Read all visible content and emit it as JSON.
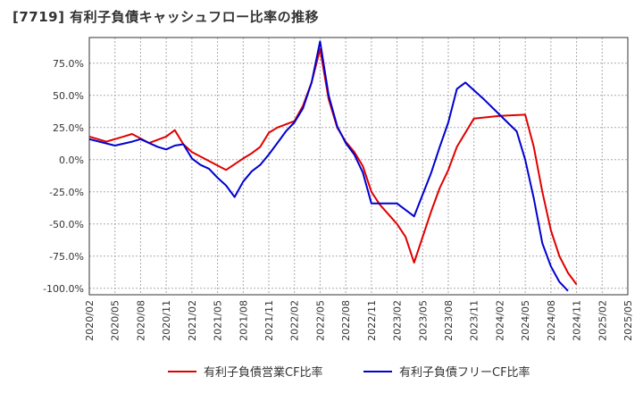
{
  "title": "[7719]  有利子負債キャッシュフロー比率の推移",
  "chart_data": {
    "type": "line",
    "title": "[7719]  有利子負債キャッシュフロー比率の推移",
    "xlabel": "",
    "ylabel": "",
    "ylim": [
      -105,
      95
    ],
    "yticks": [
      75,
      50,
      25,
      0,
      -25,
      -50,
      -75,
      -100
    ],
    "ytick_labels": [
      "75.0%",
      "50.0%",
      "25.0%",
      "0.0%",
      "-25.0%",
      "-50.0%",
      "-75.0%",
      "-100.0%"
    ],
    "xticks": [
      "2020/02",
      "2020/05",
      "2020/08",
      "2020/11",
      "2021/02",
      "2021/05",
      "2021/08",
      "2021/11",
      "2022/02",
      "2022/05",
      "2022/08",
      "2022/11",
      "2023/02",
      "2023/05",
      "2023/08",
      "2023/11",
      "2024/02",
      "2024/05",
      "2024/08",
      "2024/11",
      "2025/02",
      "2025/05"
    ],
    "legend_position": "bottom",
    "series": [
      {
        "name": "有利子負債営業CF比率",
        "color": "#e00000",
        "points": [
          [
            0,
            18
          ],
          [
            2,
            14
          ],
          [
            4,
            18
          ],
          [
            5,
            20
          ],
          [
            7,
            13
          ],
          [
            9,
            18
          ],
          [
            10,
            23
          ],
          [
            11,
            12
          ],
          [
            12,
            6
          ],
          [
            14,
            -1
          ],
          [
            16,
            -8
          ],
          [
            18,
            1
          ],
          [
            19,
            5
          ],
          [
            20,
            10
          ],
          [
            21,
            21
          ],
          [
            22,
            25
          ],
          [
            24,
            30
          ],
          [
            25,
            42
          ],
          [
            26,
            60
          ],
          [
            27,
            86
          ],
          [
            28,
            47
          ],
          [
            29,
            25
          ],
          [
            30,
            14
          ],
          [
            31,
            6
          ],
          [
            32,
            -5
          ],
          [
            33,
            -25
          ],
          [
            34,
            -35
          ],
          [
            36,
            -50
          ],
          [
            37,
            -60
          ],
          [
            38,
            -80
          ],
          [
            40,
            -40
          ],
          [
            41,
            -22
          ],
          [
            42,
            -8
          ],
          [
            43,
            10
          ],
          [
            45,
            32
          ],
          [
            48,
            34
          ],
          [
            51,
            35
          ],
          [
            52,
            10
          ],
          [
            53,
            -25
          ],
          [
            54,
            -55
          ],
          [
            55,
            -75
          ],
          [
            56,
            -88
          ],
          [
            57,
            -97
          ]
        ]
      },
      {
        "name": "有利子負債フリーCF比率",
        "color": "#0000d0",
        "points": [
          [
            0,
            16
          ],
          [
            3,
            11
          ],
          [
            5,
            14
          ],
          [
            6,
            16
          ],
          [
            8,
            10
          ],
          [
            9,
            8
          ],
          [
            10,
            11
          ],
          [
            11,
            12
          ],
          [
            12,
            1
          ],
          [
            13,
            -4
          ],
          [
            14,
            -7
          ],
          [
            15,
            -14
          ],
          [
            16,
            -20
          ],
          [
            17,
            -29
          ],
          [
            18,
            -17
          ],
          [
            19,
            -9
          ],
          [
            20,
            -4
          ],
          [
            21,
            4
          ],
          [
            22,
            13
          ],
          [
            23,
            22
          ],
          [
            24,
            29
          ],
          [
            25,
            40
          ],
          [
            26,
            60
          ],
          [
            27,
            92
          ],
          [
            28,
            50
          ],
          [
            29,
            26
          ],
          [
            30,
            13
          ],
          [
            31,
            4
          ],
          [
            32,
            -10
          ],
          [
            33,
            -34
          ],
          [
            34,
            -34
          ],
          [
            36,
            -34
          ],
          [
            38,
            -44
          ],
          [
            40,
            -10
          ],
          [
            41,
            10
          ],
          [
            42,
            29
          ],
          [
            43,
            55
          ],
          [
            44,
            60
          ],
          [
            46,
            48
          ],
          [
            48,
            35
          ],
          [
            50,
            22
          ],
          [
            51,
            0
          ],
          [
            52,
            -30
          ],
          [
            53,
            -65
          ],
          [
            54,
            -83
          ],
          [
            55,
            -95
          ],
          [
            56,
            -102
          ]
        ]
      }
    ]
  }
}
